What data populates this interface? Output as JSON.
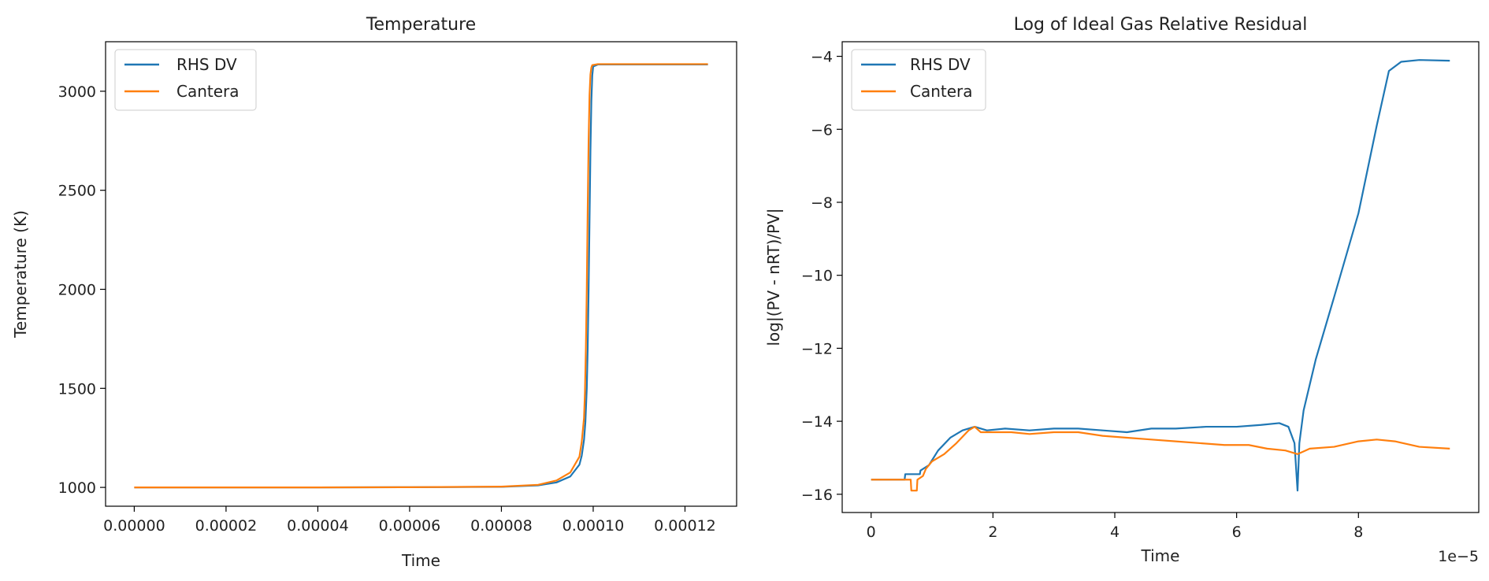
{
  "colors": {
    "rhs": "#1f77b4",
    "cantera": "#ff7f0e"
  },
  "chart_data": [
    {
      "type": "line",
      "title": "Temperature",
      "xlabel": "Time",
      "ylabel": "Temperature (K)",
      "xlim": [
        -6.25e-06,
        0.00013125
      ],
      "ylim": [
        905,
        3250
      ],
      "xticks": [
        0,
        2e-05,
        4e-05,
        6e-05,
        8e-05,
        0.0001,
        0.00012
      ],
      "xtick_labels": [
        "0.00000",
        "0.00002",
        "0.00004",
        "0.00006",
        "0.00008",
        "0.00010",
        "0.00012"
      ],
      "yticks": [
        1000,
        1500,
        2000,
        2500,
        3000
      ],
      "ytick_labels": [
        "1000",
        "1500",
        "2000",
        "2500",
        "3000"
      ],
      "legend_position": "top-left",
      "series": [
        {
          "name": "RHS DV",
          "x": [
            0,
            2e-05,
            4e-05,
            6e-05,
            8e-05,
            8.8e-05,
            9.2e-05,
            9.5e-05,
            9.7e-05,
            9.75e-05,
            9.8e-05,
            9.83e-05,
            9.86e-05,
            9.88e-05,
            9.9e-05,
            9.92e-05,
            9.94e-05,
            9.96e-05,
            9.98e-05,
            0.0001,
            0.000101,
            0.000125
          ],
          "y": [
            1000,
            1000,
            1000,
            1001,
            1003,
            1010,
            1025,
            1055,
            1115,
            1160,
            1240,
            1330,
            1500,
            1700,
            2000,
            2350,
            2700,
            2950,
            3080,
            3125,
            3135,
            3135
          ]
        },
        {
          "name": "Cantera",
          "x": [
            0,
            2e-05,
            4e-05,
            6e-05,
            8e-05,
            8.8e-05,
            9.2e-05,
            9.5e-05,
            9.7e-05,
            9.75e-05,
            9.8e-05,
            9.82e-05,
            9.84e-05,
            9.86e-05,
            9.88e-05,
            9.9e-05,
            9.92e-05,
            9.94e-05,
            9.96e-05,
            9.98e-05,
            0.000101,
            0.000125
          ],
          "y": [
            1000,
            1000,
            1000,
            1001,
            1004,
            1013,
            1035,
            1075,
            1155,
            1230,
            1350,
            1480,
            1700,
            2000,
            2400,
            2750,
            2980,
            3085,
            3120,
            3132,
            3137,
            3137
          ]
        }
      ]
    },
    {
      "type": "line",
      "title": "Log of Ideal Gas Relative Residual",
      "xlabel": "Time",
      "ylabel": "log|(PV - nRT)/PV|",
      "x_offset_label": "1e−5",
      "xlim": [
        -0.475,
        9.975
      ],
      "ylim": [
        -16.5,
        -3.6
      ],
      "xticks": [
        0,
        2,
        4,
        6,
        8
      ],
      "xtick_labels": [
        "0",
        "2",
        "4",
        "6",
        "8"
      ],
      "yticks": [
        -16,
        -14,
        -12,
        -10,
        -8,
        -6,
        -4
      ],
      "ytick_labels": [
        "−16",
        "−14",
        "−12",
        "−10",
        "−8",
        "−6",
        "−4"
      ],
      "legend_position": "top-left",
      "series": [
        {
          "name": "RHS DV",
          "x": [
            0,
            0.55,
            0.56,
            0.8,
            0.81,
            0.95,
            1.1,
            1.3,
            1.5,
            1.7,
            1.9,
            2.2,
            2.6,
            3.0,
            3.4,
            3.8,
            4.2,
            4.6,
            5.0,
            5.5,
            6.0,
            6.4,
            6.7,
            6.85,
            6.95,
            7.0,
            7.03,
            7.1,
            7.3,
            7.6,
            8.0,
            8.3,
            8.5,
            8.7,
            9.0,
            9.5
          ],
          "y": [
            -15.6,
            -15.6,
            -15.45,
            -15.45,
            -15.35,
            -15.2,
            -14.8,
            -14.45,
            -14.25,
            -14.15,
            -14.25,
            -14.2,
            -14.25,
            -14.2,
            -14.2,
            -14.25,
            -14.3,
            -14.2,
            -14.2,
            -14.15,
            -14.15,
            -14.1,
            -14.05,
            -14.15,
            -14.6,
            -15.9,
            -14.6,
            -13.7,
            -12.3,
            -10.6,
            -8.3,
            -5.9,
            -4.4,
            -4.15,
            -4.1,
            -4.12
          ]
        },
        {
          "name": "Cantera",
          "x": [
            0,
            0.65,
            0.66,
            0.75,
            0.76,
            0.85,
            0.9,
            1.0,
            1.2,
            1.4,
            1.6,
            1.7,
            1.8,
            2.0,
            2.3,
            2.6,
            3.0,
            3.4,
            3.8,
            4.2,
            4.6,
            5.0,
            5.4,
            5.8,
            6.2,
            6.5,
            6.8,
            7.0,
            7.2,
            7.6,
            8.0,
            8.3,
            8.6,
            9.0,
            9.5
          ],
          "y": [
            -15.6,
            -15.6,
            -15.9,
            -15.9,
            -15.6,
            -15.5,
            -15.3,
            -15.1,
            -14.9,
            -14.6,
            -14.25,
            -14.15,
            -14.3,
            -14.3,
            -14.3,
            -14.35,
            -14.3,
            -14.3,
            -14.4,
            -14.45,
            -14.5,
            -14.55,
            -14.6,
            -14.65,
            -14.65,
            -14.75,
            -14.8,
            -14.9,
            -14.75,
            -14.7,
            -14.55,
            -14.5,
            -14.55,
            -14.7,
            -14.75
          ]
        }
      ]
    }
  ]
}
